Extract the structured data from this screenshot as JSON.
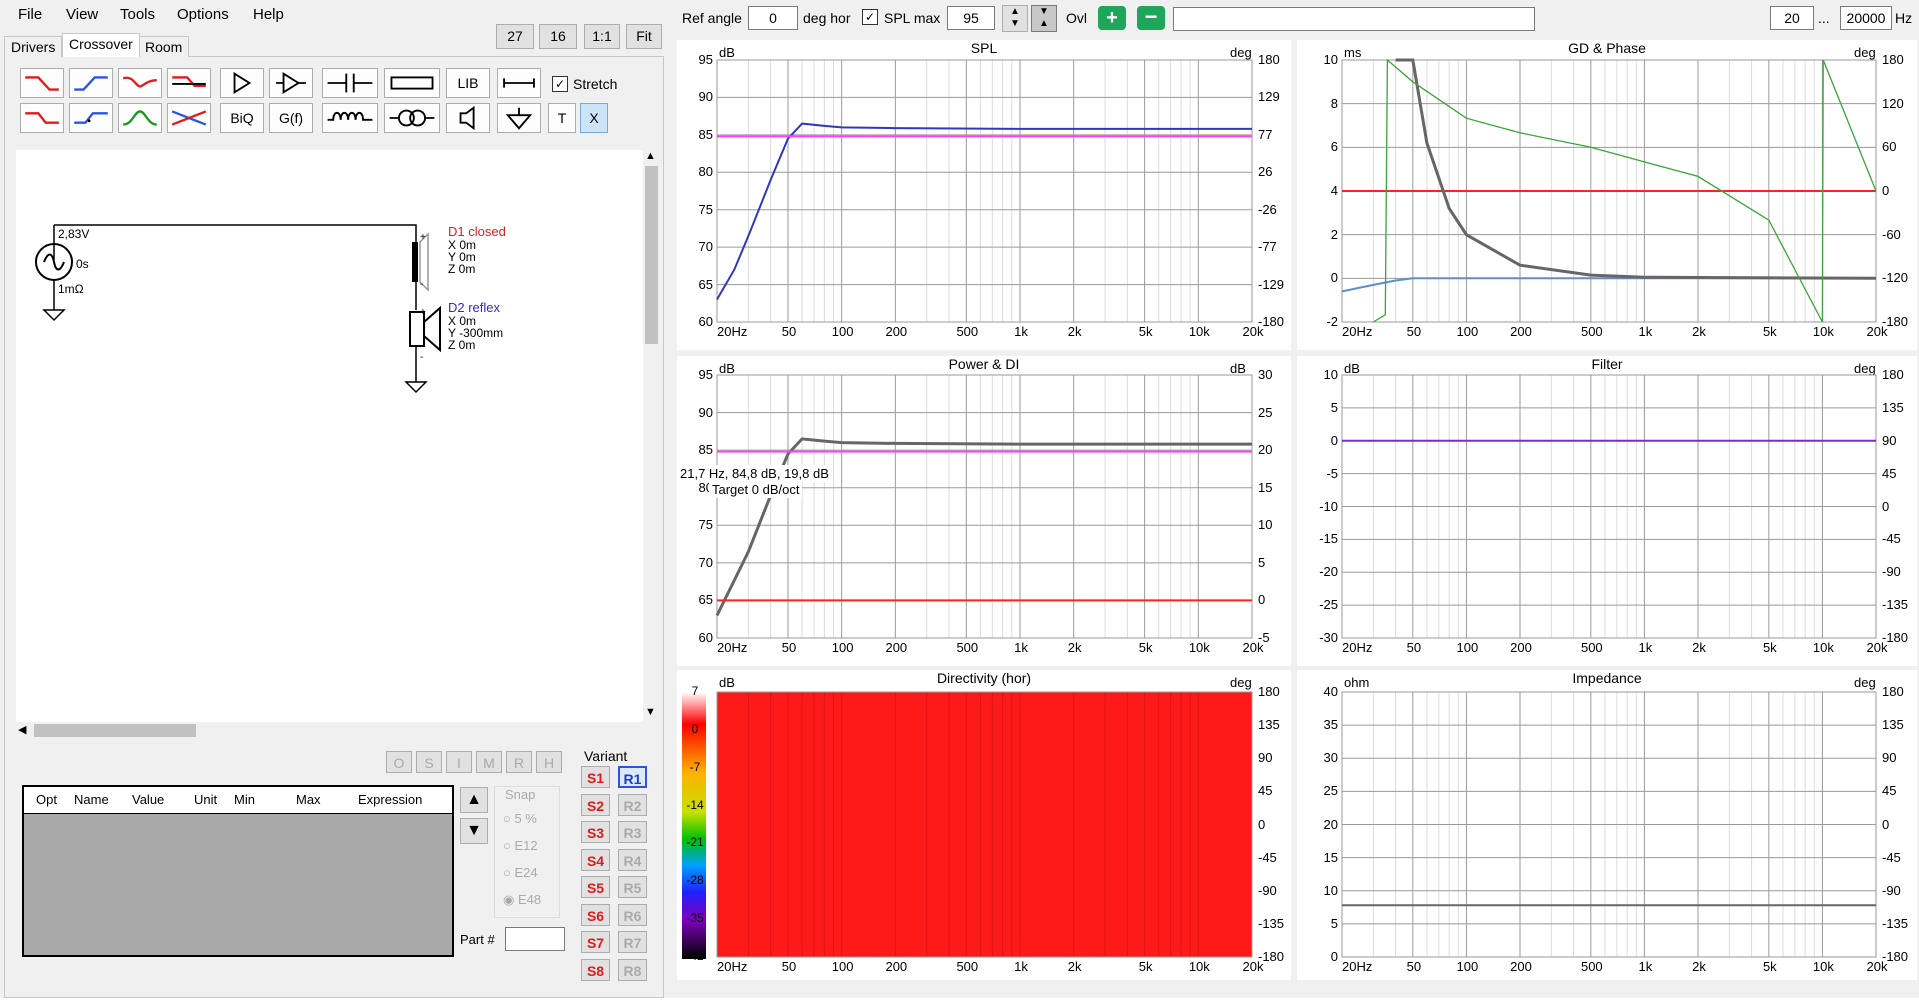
{
  "menu": [
    "File",
    "View",
    "Tools",
    "Options",
    "Help"
  ],
  "tabs": [
    "Drivers",
    "Crossover",
    "Room"
  ],
  "zoom_buttons": [
    "27",
    "16",
    "1:1",
    "Fit"
  ],
  "toolbar_text": {
    "lib": "LIB",
    "biq": "BiQ",
    "gf": "G(f)",
    "t": "T",
    "x": "X"
  },
  "stretch_label": "Stretch",
  "schematic": {
    "source_voltage": "2,83V",
    "source_delay": "0s",
    "source_resistance": "1mΩ",
    "d1": {
      "name": "D1 closed",
      "x": "X 0m",
      "y": "Y 0m",
      "z": "Z 0m"
    },
    "d2": {
      "name": "D2 reflex",
      "x": "X 0m",
      "y": "Y -300mm",
      "z": "Z 0m"
    }
  },
  "opt_buttons": [
    "O",
    "S",
    "I",
    "M",
    "R",
    "H"
  ],
  "table_headers": [
    "Opt",
    "Name",
    "Value",
    "Unit",
    "Min",
    "Max",
    "Expression"
  ],
  "snap": {
    "title": "Snap",
    "options": [
      "5 %",
      "E12",
      "E24",
      "E48"
    ],
    "selected": "E48"
  },
  "part_label": "Part #",
  "part_value": "",
  "variant": {
    "title": "Variant",
    "s": [
      "S1",
      "S2",
      "S3",
      "S4",
      "S5",
      "S6",
      "S7",
      "S8"
    ],
    "r": [
      "R1",
      "R2",
      "R3",
      "R4",
      "R5",
      "R6",
      "R7",
      "R8"
    ],
    "active_r": "R1"
  },
  "topbar": {
    "ref_angle_label": "Ref angle",
    "ref_angle_value": "0",
    "deg_hor": "deg hor",
    "spl_max_label": "SPL max",
    "spl_max_value": "95",
    "ovl_label": "Ovl",
    "freq_from": "20",
    "freq_sep": "...",
    "freq_to": "20000",
    "freq_unit": "Hz",
    "message": ""
  },
  "colors": {
    "blue": "#3237c0",
    "magenta": "#ff40ff",
    "red": "#ff2020",
    "grey": "#666666",
    "green": "#3aa53a",
    "lightblue": "#5b8fd0"
  },
  "charts": {
    "spl": {
      "title": "SPL",
      "left_unit": "dB",
      "right_unit": "deg",
      "left_ticks": [
        "95",
        "90",
        "85",
        "80",
        "75",
        "70",
        "65",
        "60"
      ],
      "right_ticks": [
        "180",
        "129",
        "77",
        "26",
        "-26",
        "-77",
        "-129",
        "-180"
      ]
    },
    "gd": {
      "title": "GD & Phase",
      "left_unit": "ms",
      "right_unit": "deg",
      "left_ticks": [
        "10",
        "8",
        "6",
        "4",
        "2",
        "0",
        "-2"
      ],
      "right_ticks": [
        "180",
        "120",
        "60",
        "0",
        "-60",
        "-120",
        "-180"
      ]
    },
    "power": {
      "title": "Power & DI",
      "left_unit": "dB",
      "right_unit": "dB",
      "left_ticks": [
        "95",
        "90",
        "85",
        "80",
        "75",
        "70",
        "65",
        "60"
      ],
      "right_ticks": [
        "30",
        "25",
        "20",
        "15",
        "10",
        "5",
        "0",
        "-5"
      ],
      "cursor_text": "21,7 Hz, 84,8 dB, 19,8 dB",
      "target_text": "Target 0 dB/oct"
    },
    "filter": {
      "title": "Filter",
      "left_unit": "dB",
      "right_unit": "deg",
      "left_ticks": [
        "10",
        "5",
        "0",
        "-5",
        "-10",
        "-15",
        "-20",
        "-25",
        "-30"
      ],
      "right_ticks": [
        "180",
        "135",
        "90",
        "45",
        "0",
        "-45",
        "-90",
        "-135",
        "-180"
      ]
    },
    "directivity": {
      "title": "Directivity (hor)",
      "left_unit": "dB",
      "right_unit": "deg",
      "right_ticks": [
        "180",
        "135",
        "90",
        "45",
        "0",
        "-45",
        "-90",
        "-135",
        "-180"
      ],
      "scale_ticks": [
        "7",
        "0",
        "-7",
        "-14",
        "-21",
        "-28",
        "-35",
        "-42"
      ]
    },
    "impedance": {
      "title": "Impedance",
      "left_unit": "ohm",
      "right_unit": "deg",
      "left_ticks": [
        "40",
        "35",
        "30",
        "25",
        "20",
        "15",
        "10",
        "5",
        "0"
      ],
      "right_ticks": [
        "180",
        "135",
        "90",
        "45",
        "0",
        "-45",
        "-90",
        "-135",
        "-180"
      ]
    }
  },
  "x_ticks": [
    "20Hz",
    "50",
    "100",
    "200",
    "500",
    "1k",
    "2k",
    "5k",
    "10k",
    "20k"
  ],
  "chart_data": [
    {
      "type": "line",
      "title": "SPL",
      "xscale": "log",
      "xlim": [
        20,
        20000
      ],
      "ylim": [
        60,
        95
      ],
      "x": [
        20,
        25,
        30,
        40,
        50,
        60,
        80,
        100,
        200,
        1000,
        20000
      ],
      "series": [
        {
          "values": [
            63,
            67,
            71.5,
            79,
            84.5,
            86.5,
            86.2,
            86,
            85.9,
            85.8,
            85.8
          ]
        },
        {
          "values": [
            84.8,
            84.8,
            84.8,
            84.8,
            84.8,
            84.8,
            84.8,
            84.8,
            84.8,
            84.8,
            84.8
          ]
        }
      ]
    },
    {
      "type": "line",
      "title": "GD & Phase",
      "xscale": "log",
      "xlim": [
        20,
        20000
      ],
      "ylim": [
        -2,
        10
      ],
      "x": [
        20,
        30,
        40,
        50,
        60,
        80,
        100,
        200,
        500,
        1000,
        20000
      ],
      "series": [
        {
          "values": [
            4,
            4,
            4,
            4,
            4,
            4,
            4,
            4,
            4,
            4,
            4
          ]
        },
        {
          "values": [
            -0.6,
            -0.3,
            -0.1,
            0,
            0,
            0,
            0,
            0,
            0,
            0,
            0
          ]
        },
        {
          "values": [
            null,
            null,
            10,
            10,
            6.2,
            3.2,
            2,
            0.6,
            0.15,
            0.05,
            0
          ]
        }
      ]
    },
    {
      "type": "line",
      "title": "Power & DI",
      "xscale": "log",
      "xlim": [
        20,
        20000
      ],
      "ylim": [
        60,
        95
      ],
      "x": [
        20,
        30,
        40,
        50,
        60,
        80,
        100,
        200,
        1000,
        20000
      ],
      "series": [
        {
          "values": [
            63,
            71.5,
            79,
            84.5,
            86.5,
            86.2,
            86,
            85.9,
            85.8,
            85.8
          ]
        },
        {
          "values": [
            84.8,
            84.8,
            84.8,
            84.8,
            84.8,
            84.8,
            84.8,
            84.8,
            84.8,
            84.8
          ]
        },
        {
          "values": [
            65,
            65,
            65,
            65,
            65,
            65,
            65,
            65,
            65,
            65
          ]
        }
      ]
    },
    {
      "type": "line",
      "title": "Filter",
      "xscale": "log",
      "xlim": [
        20,
        20000
      ],
      "ylim": [
        -30,
        10
      ],
      "x": [
        20,
        20000
      ],
      "series": [
        {
          "values": [
            0,
            0
          ]
        }
      ]
    },
    {
      "type": "heatmap",
      "title": "Directivity (hor)",
      "xscale": "log",
      "xlim": [
        20,
        20000
      ],
      "ylim": [
        -180,
        180
      ]
    },
    {
      "type": "line",
      "title": "Impedance",
      "xscale": "log",
      "xlim": [
        20,
        20000
      ],
      "ylim": [
        0,
        40
      ],
      "x": [
        20,
        20000
      ],
      "series": [
        {
          "values": [
            7.8,
            7.8
          ]
        }
      ]
    }
  ]
}
